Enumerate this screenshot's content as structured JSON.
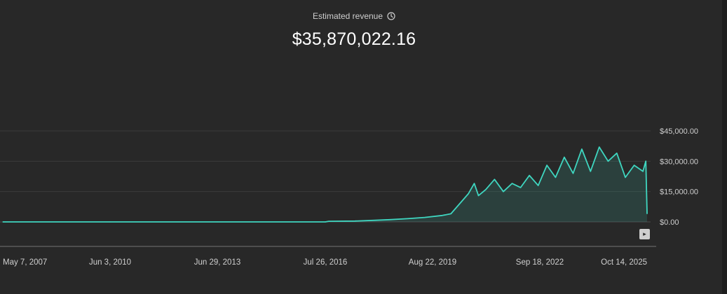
{
  "metric": {
    "label": "Estimated revenue",
    "total": "$35,870,022.16",
    "info_icon": "clock-info-icon"
  },
  "chart_data": {
    "type": "area",
    "title": "Estimated revenue",
    "series_color": "#3fd6c0",
    "x_tick_labels": [
      "May 7, 2007",
      "Jun 3, 2010",
      "Jun 29, 2013",
      "Jul 26, 2016",
      "Aug 22, 2019",
      "Sep 18, 2022",
      "Oct 14, 2025"
    ],
    "y_tick_labels": [
      "$0.00",
      "$15,000.00",
      "$30,000.00",
      "$45,000.00"
    ],
    "ylim": [
      0,
      45000
    ],
    "grid": true,
    "legend": "none",
    "series": [
      {
        "values": [
          {
            "x": "2007-05-07",
            "y": 0
          },
          {
            "x": "2010-06-03",
            "y": 0
          },
          {
            "x": "2013-06-29",
            "y": 0
          },
          {
            "x": "2016-07-26",
            "y": 0
          },
          {
            "x": "2016-09-01",
            "y": 300
          },
          {
            "x": "2017-06-01",
            "y": 400
          },
          {
            "x": "2018-01-01",
            "y": 800
          },
          {
            "x": "2018-06-01",
            "y": 1100
          },
          {
            "x": "2018-12-01",
            "y": 1600
          },
          {
            "x": "2019-06-01",
            "y": 2200
          },
          {
            "x": "2019-12-01",
            "y": 3200
          },
          {
            "x": "2020-03-01",
            "y": 4000
          },
          {
            "x": "2020-06-01",
            "y": 9000
          },
          {
            "x": "2020-09-01",
            "y": 14000
          },
          {
            "x": "2020-11-01",
            "y": 19000
          },
          {
            "x": "2020-12-15",
            "y": 13000
          },
          {
            "x": "2021-03-01",
            "y": 16000
          },
          {
            "x": "2021-06-01",
            "y": 21000
          },
          {
            "x": "2021-09-01",
            "y": 15000
          },
          {
            "x": "2021-12-01",
            "y": 19000
          },
          {
            "x": "2022-03-01",
            "y": 17000
          },
          {
            "x": "2022-06-01",
            "y": 23000
          },
          {
            "x": "2022-09-01",
            "y": 18000
          },
          {
            "x": "2022-12-01",
            "y": 28000
          },
          {
            "x": "2023-03-01",
            "y": 22000
          },
          {
            "x": "2023-06-01",
            "y": 32000
          },
          {
            "x": "2023-09-01",
            "y": 24000
          },
          {
            "x": "2023-12-01",
            "y": 36000
          },
          {
            "x": "2024-03-01",
            "y": 25000
          },
          {
            "x": "2024-06-01",
            "y": 37000
          },
          {
            "x": "2024-09-01",
            "y": 30000
          },
          {
            "x": "2024-12-01",
            "y": 34000
          },
          {
            "x": "2025-03-01",
            "y": 22000
          },
          {
            "x": "2025-06-01",
            "y": 28000
          },
          {
            "x": "2025-09-01",
            "y": 25000
          },
          {
            "x": "2025-10-01",
            "y": 30000
          },
          {
            "x": "2025-10-14",
            "y": 4000
          }
        ]
      }
    ]
  },
  "controls": {
    "expand_icon": "chevron-right-icon",
    "expand_glyph": "▸"
  }
}
